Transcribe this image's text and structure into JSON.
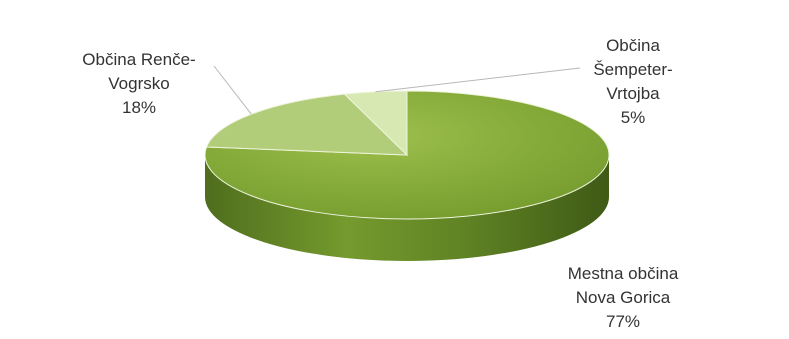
{
  "chart_data": {
    "type": "pie",
    "three_d": true,
    "legend": "none",
    "slices": [
      {
        "label_lines": [
          "Mestna občina",
          "Nova Gorica"
        ],
        "value_label": "77%",
        "value": 77,
        "color": "#85aa3a"
      },
      {
        "label_lines": [
          "Občina Renče-",
          "Vogrsko"
        ],
        "value_label": "18%",
        "value": 18,
        "color": "#b2cd7a"
      },
      {
        "label_lines": [
          "Občina",
          "Šempeter-",
          "Vrtojba"
        ],
        "value_label": "5%",
        "value": 5,
        "color": "#d8e8b2"
      }
    ]
  }
}
